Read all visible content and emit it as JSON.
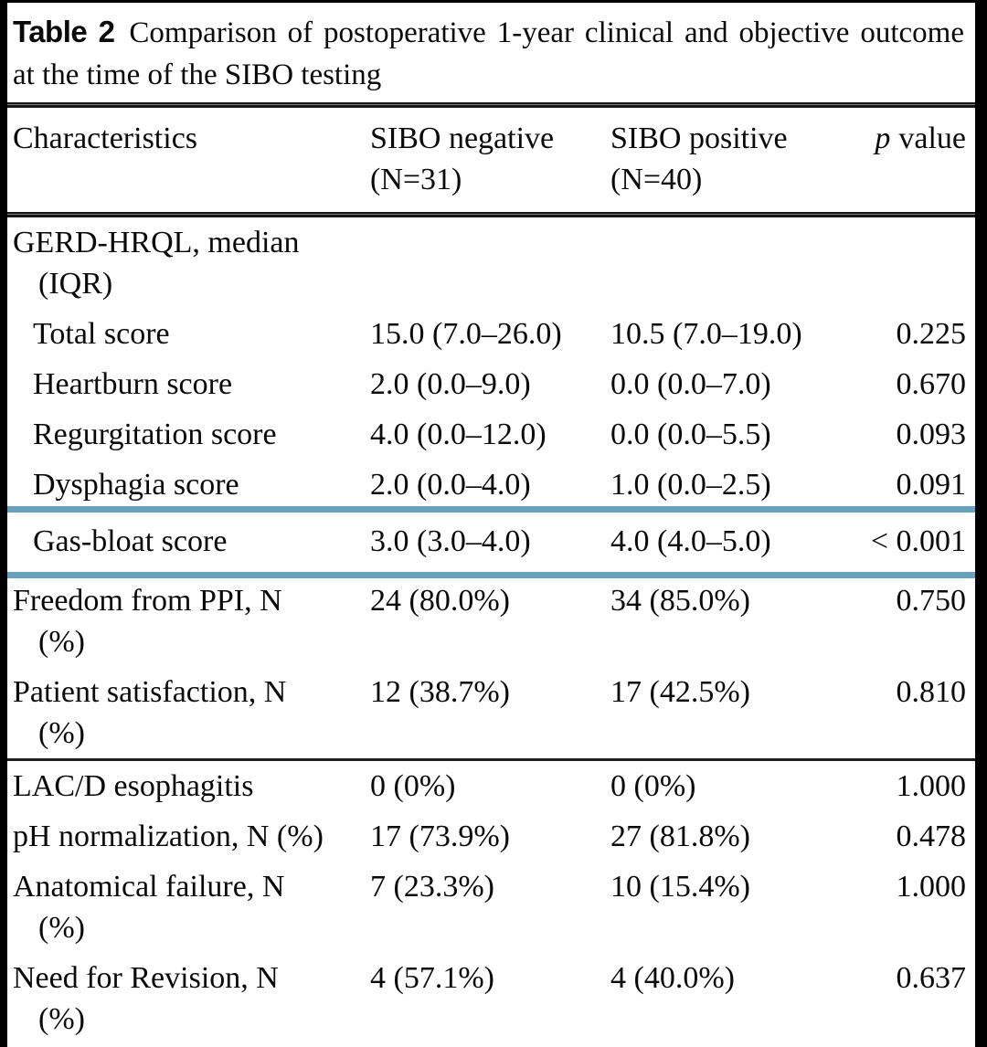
{
  "caption": {
    "label": "Table 2",
    "text": "Comparison of postoperative 1-year clinical and objective outcome at the time of the SIBO testing"
  },
  "highlight": {
    "color": "#6aa2bd",
    "highlighted_row": "gas-bloat-score"
  },
  "table": {
    "header": {
      "col1": "Characteristics",
      "col2_lines": [
        "SIBO negative",
        "(N=31)"
      ],
      "col3_lines": [
        "SIBO positive",
        "(N=40)"
      ],
      "col4_italic": "p",
      "col4_text": "value"
    },
    "rows": [
      {
        "name": "gerd-hrql-section",
        "label_lines": [
          "GERD-HRQL, median",
          "(IQR)"
        ],
        "indent": false,
        "neg": "",
        "pos": "",
        "p": ""
      },
      {
        "name": "total-score",
        "label_lines": [
          "Total score"
        ],
        "indent": true,
        "neg": "15.0 (7.0–26.0)",
        "pos": "10.5 (7.0–19.0)",
        "p": "0.225"
      },
      {
        "name": "heartburn-score",
        "label_lines": [
          "Heartburn score"
        ],
        "indent": true,
        "neg": "2.0 (0.0–9.0)",
        "pos": "0.0 (0.0–7.0)",
        "p": "0.670"
      },
      {
        "name": "regurgitation-score",
        "label_lines": [
          "Regurgitation score"
        ],
        "indent": true,
        "neg": "4.0 (0.0–12.0)",
        "pos": "0.0 (0.0–5.5)",
        "p": "0.093"
      },
      {
        "name": "dysphagia-score",
        "label_lines": [
          "Dysphagia score"
        ],
        "indent": true,
        "neg": "2.0 (0.0–4.0)",
        "pos": "1.0 (0.0–2.5)",
        "p": "0.091"
      },
      {
        "name": "gas-bloat-score",
        "label_lines": [
          "Gas-bloat score"
        ],
        "indent": true,
        "highlight": true,
        "neg": "3.0 (3.0–4.0)",
        "pos": "4.0 (4.0–5.0)",
        "p": "< 0.001",
        "rule_after": "thin"
      },
      {
        "name": "freedom-from-ppi",
        "label_lines": [
          "Freedom from PPI, N",
          "(%)"
        ],
        "indent": false,
        "neg": "24 (80.0%)",
        "pos": "34 (85.0%)",
        "p": "0.750"
      },
      {
        "name": "patient-satisfaction",
        "label_lines": [
          "Patient satisfaction, N",
          "(%)"
        ],
        "indent": false,
        "neg": "12 (38.7%)",
        "pos": "17 (42.5%)",
        "p": "0.810",
        "rule_after": "thin"
      },
      {
        "name": "lacd-esophagitis",
        "label_lines": [
          "LAC/D esophagitis"
        ],
        "indent": false,
        "neg": "0 (0%)",
        "pos": "0 (0%)",
        "p": "1.000"
      },
      {
        "name": "ph-normalization",
        "label_lines": [
          "pH normalization, N (%)"
        ],
        "indent": false,
        "neg": "17 (73.9%)",
        "pos": "27 (81.8%)",
        "p": "0.478"
      },
      {
        "name": "anatomical-failure",
        "label_lines": [
          "Anatomical failure, N",
          "(%)"
        ],
        "indent": false,
        "neg": "7 (23.3%)",
        "pos": "10 (15.4%)",
        "p": "1.000"
      },
      {
        "name": "need-for-revision",
        "label_lines": [
          "Need for Revision, N",
          "(%)"
        ],
        "indent": false,
        "neg": "4 (57.1%)",
        "pos": "4 (40.0%)",
        "p": "0.637"
      }
    ]
  }
}
